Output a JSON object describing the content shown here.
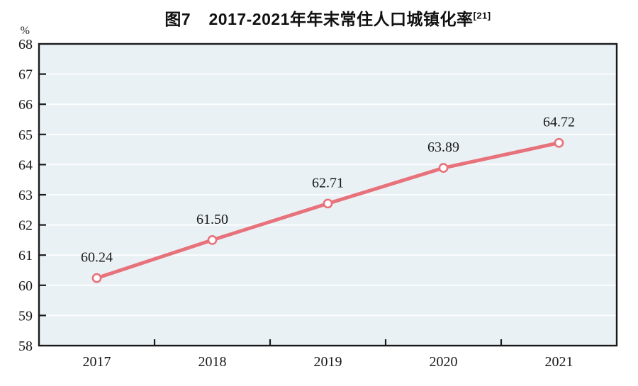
{
  "title": {
    "prefix": "图7",
    "main": "2017-2021年年末常住人口城镇化率",
    "superscript": "[21]"
  },
  "chart_data": {
    "type": "line",
    "title": "图7 2017-2021年年末常住人口城镇化率[21]",
    "categories": [
      "2017",
      "2018",
      "2019",
      "2020",
      "2021"
    ],
    "values": [
      60.24,
      61.5,
      62.71,
      63.89,
      64.72
    ],
    "data_labels": [
      "60.24",
      "61.50",
      "62.71",
      "63.89",
      "64.72"
    ],
    "ylabel": "%",
    "ylim": [
      58,
      68
    ],
    "y_ticks": [
      68,
      67,
      66,
      65,
      64,
      63,
      62,
      61,
      60,
      59,
      58
    ],
    "grid": true,
    "legend_position": "none",
    "marker": "open-circle",
    "colors": {
      "line": "#e7727b",
      "marker_fill": "#ffffff",
      "plot_background": "#eaf1f5",
      "axis": "#1a1a1a",
      "gridline": "#ffffff",
      "text": "#1a1a1a"
    }
  }
}
